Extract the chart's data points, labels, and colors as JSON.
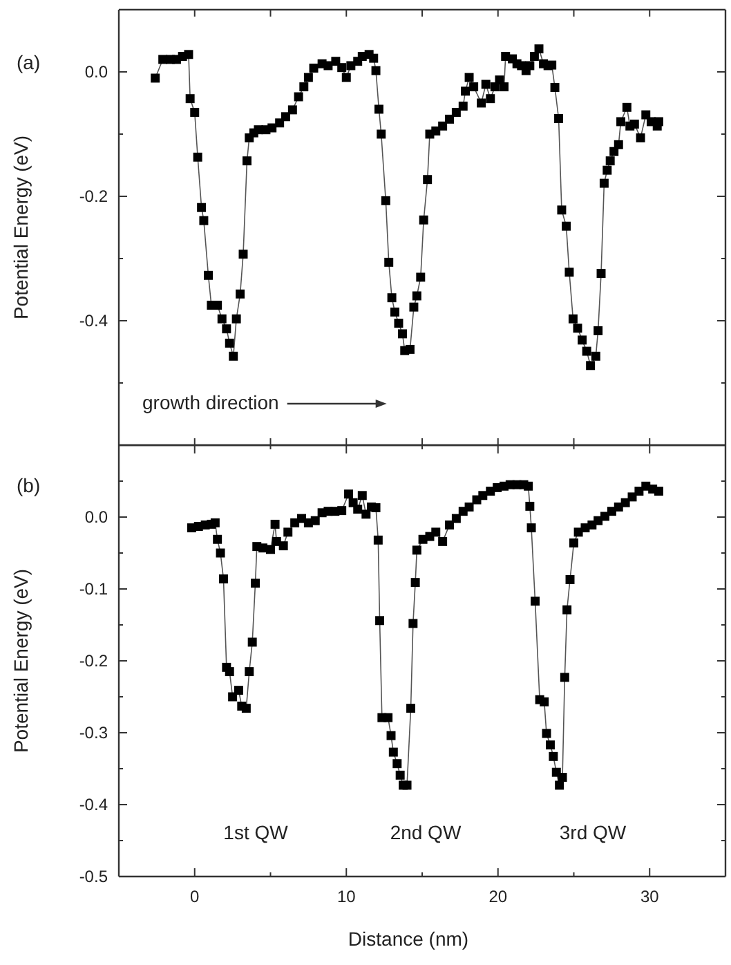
{
  "chart_data": [
    {
      "type": "line",
      "ylabel": "Potential Energy (eV)",
      "xlim": [
        -5,
        35
      ],
      "xticks": [
        0,
        5,
        10,
        15,
        20,
        25,
        30
      ],
      "ylim": [
        -0.6,
        0.1
      ],
      "yticks": [
        {
          "value": 0,
          "label": "0.0"
        },
        {
          "value": -0.1,
          "label": null
        },
        {
          "value": -0.2,
          "label": "-0.2"
        },
        {
          "value": -0.3,
          "label": null
        },
        {
          "value": -0.4,
          "label": "-0.4"
        },
        {
          "value": -0.5,
          "label": null
        }
      ],
      "tick_labels": "y",
      "marker": "square",
      "line_style": "solid",
      "annotations": [
        "(a)",
        "growth direction"
      ],
      "series": [
        {
          "color": "#000000",
          "x": [
            -2.6,
            -2.1,
            -1.6,
            -1.2,
            -0.8,
            -0.4,
            -0.3,
            0.0,
            0.2,
            0.45,
            0.6,
            0.9,
            1.1,
            1.5,
            1.8,
            2.1,
            2.3,
            2.55,
            2.75,
            3.0,
            3.2,
            3.45,
            3.6,
            3.9,
            4.2,
            4.7,
            5.1,
            5.6,
            6.0,
            6.45,
            6.85,
            7.2,
            7.5,
            7.85,
            8.4,
            8.8,
            9.3,
            9.7,
            10.0,
            10.3,
            10.75,
            11.05,
            11.5,
            11.8,
            11.95,
            12.15,
            12.3,
            12.6,
            12.8,
            13.0,
            13.2,
            13.45,
            13.7,
            13.85,
            14.2,
            14.45,
            14.65,
            14.9,
            15.1,
            15.35,
            15.5,
            15.9,
            16.35,
            16.8,
            17.25,
            17.7,
            17.85,
            18.1,
            18.4,
            18.9,
            19.2,
            19.5,
            19.8,
            20.1,
            20.4,
            20.5,
            20.95,
            21.25,
            21.55,
            21.85,
            22.1,
            22.4,
            22.7,
            23.0,
            23.3,
            23.55,
            23.75,
            24.0,
            24.2,
            24.5,
            24.7,
            24.95,
            25.25,
            25.55,
            25.85,
            26.1,
            26.45,
            26.6,
            26.8,
            27.0,
            27.2,
            27.4,
            27.65,
            27.95,
            28.1,
            28.5,
            28.7,
            29.0,
            29.4,
            29.75,
            30.1,
            30.5,
            30.6
          ],
          "values": [
            -0.01,
            0.02,
            0.02,
            0.02,
            0.025,
            0.028,
            -0.043,
            -0.065,
            -0.137,
            -0.218,
            -0.239,
            -0.327,
            -0.375,
            -0.375,
            -0.397,
            -0.413,
            -0.436,
            -0.457,
            -0.397,
            -0.357,
            -0.293,
            -0.143,
            -0.106,
            -0.098,
            -0.093,
            -0.093,
            -0.09,
            -0.082,
            -0.072,
            -0.061,
            -0.04,
            -0.024,
            -0.009,
            0.006,
            0.013,
            0.01,
            0.017,
            0.007,
            -0.009,
            0.01,
            0.017,
            0.025,
            0.028,
            0.022,
            0.002,
            -0.06,
            -0.1,
            -0.207,
            -0.306,
            -0.363,
            -0.386,
            -0.404,
            -0.421,
            -0.448,
            -0.446,
            -0.378,
            -0.36,
            -0.33,
            -0.238,
            -0.173,
            -0.1,
            -0.095,
            -0.087,
            -0.076,
            -0.065,
            -0.055,
            -0.031,
            -0.009,
            -0.024,
            -0.05,
            -0.02,
            -0.043,
            -0.024,
            -0.013,
            -0.024,
            0.025,
            0.021,
            0.013,
            0.01,
            0.002,
            0.01,
            0.025,
            0.037,
            0.013,
            0.01,
            0.011,
            -0.025,
            -0.075,
            -0.222,
            -0.248,
            -0.322,
            -0.397,
            -0.412,
            -0.431,
            -0.449,
            -0.472,
            -0.457,
            -0.416,
            -0.324,
            -0.179,
            -0.158,
            -0.143,
            -0.128,
            -0.117,
            -0.08,
            -0.057,
            -0.087,
            -0.084,
            -0.106,
            -0.069,
            -0.08,
            -0.087,
            -0.08
          ]
        }
      ]
    },
    {
      "type": "line",
      "xlabel": "Distance (nm)",
      "ylabel": "Potential Energy (eV)",
      "xlim": [
        -5,
        35
      ],
      "xticks": [
        {
          "value": 0,
          "label": "0"
        },
        {
          "value": 5,
          "label": null
        },
        {
          "value": 10,
          "label": "10"
        },
        {
          "value": 15,
          "label": null
        },
        {
          "value": 20,
          "label": "20"
        },
        {
          "value": 25,
          "label": null
        },
        {
          "value": 30,
          "label": "30"
        }
      ],
      "ylim": [
        -0.5,
        0.1
      ],
      "yticks": [
        {
          "value": 0.05,
          "label": null
        },
        {
          "value": 0,
          "label": "0.0"
        },
        {
          "value": -0.05,
          "label": null
        },
        {
          "value": -0.1,
          "label": "-0.1"
        },
        {
          "value": -0.15,
          "label": null
        },
        {
          "value": -0.2,
          "label": "-0.2"
        },
        {
          "value": -0.25,
          "label": null
        },
        {
          "value": -0.3,
          "label": "-0.3"
        },
        {
          "value": -0.35,
          "label": null
        },
        {
          "value": -0.4,
          "label": "-0.4"
        },
        {
          "value": -0.45,
          "label": null
        },
        {
          "value": -0.5,
          "label": "-0.5"
        }
      ],
      "marker": "square",
      "line_style": "solid",
      "annotations": [
        "(b)",
        "1st QW",
        "2nd QW",
        "3rd QW"
      ],
      "series": [
        {
          "color": "#000000",
          "x": [
            -0.2,
            0.25,
            0.7,
            1.1,
            1.35,
            1.5,
            1.7,
            1.9,
            2.1,
            2.3,
            2.5,
            2.9,
            3.1,
            3.4,
            3.6,
            3.8,
            4.0,
            4.1,
            4.5,
            5.0,
            5.3,
            5.4,
            5.85,
            6.15,
            6.6,
            7.05,
            7.5,
            7.95,
            8.4,
            8.8,
            9.25,
            9.7,
            10.15,
            10.45,
            10.75,
            11.05,
            11.3,
            11.65,
            11.95,
            12.1,
            12.2,
            12.35,
            12.75,
            12.95,
            13.1,
            13.35,
            13.55,
            13.75,
            14.0,
            14.25,
            14.4,
            14.55,
            14.65,
            15.05,
            15.5,
            15.9,
            16.35,
            16.8,
            17.25,
            17.7,
            18.1,
            18.6,
            19.0,
            19.5,
            19.95,
            20.4,
            20.8,
            21.25,
            21.7,
            22.0,
            22.1,
            22.2,
            22.45,
            22.75,
            23.05,
            23.2,
            23.45,
            23.65,
            23.85,
            24.05,
            24.25,
            24.4,
            24.55,
            24.75,
            25.0,
            25.3,
            25.75,
            26.2,
            26.6,
            27.05,
            27.5,
            27.95,
            28.4,
            28.85,
            29.3,
            29.75,
            30.2,
            30.6
          ],
          "values": [
            -0.015,
            -0.013,
            -0.011,
            -0.01,
            -0.008,
            -0.031,
            -0.05,
            -0.086,
            -0.209,
            -0.215,
            -0.25,
            -0.241,
            -0.263,
            -0.266,
            -0.215,
            -0.174,
            -0.092,
            -0.041,
            -0.043,
            -0.045,
            -0.01,
            -0.034,
            -0.04,
            -0.021,
            -0.008,
            -0.002,
            -0.008,
            -0.005,
            0.006,
            0.008,
            0.008,
            0.009,
            0.032,
            0.02,
            0.011,
            0.03,
            0.004,
            0.014,
            0.013,
            -0.032,
            -0.144,
            -0.279,
            -0.279,
            -0.304,
            -0.327,
            -0.343,
            -0.359,
            -0.373,
            -0.373,
            -0.266,
            -0.148,
            -0.091,
            -0.046,
            -0.031,
            -0.027,
            -0.021,
            -0.034,
            -0.011,
            -0.002,
            0.008,
            0.014,
            0.024,
            0.03,
            0.036,
            0.041,
            0.043,
            0.045,
            0.045,
            0.045,
            0.043,
            0.015,
            -0.015,
            -0.117,
            -0.254,
            -0.257,
            -0.301,
            -0.317,
            -0.333,
            -0.355,
            -0.373,
            -0.362,
            -0.223,
            -0.129,
            -0.087,
            -0.036,
            -0.021,
            -0.015,
            -0.011,
            -0.005,
            0.001,
            0.008,
            0.014,
            0.02,
            0.028,
            0.036,
            0.043,
            0.039,
            0.036
          ]
        }
      ]
    }
  ]
}
